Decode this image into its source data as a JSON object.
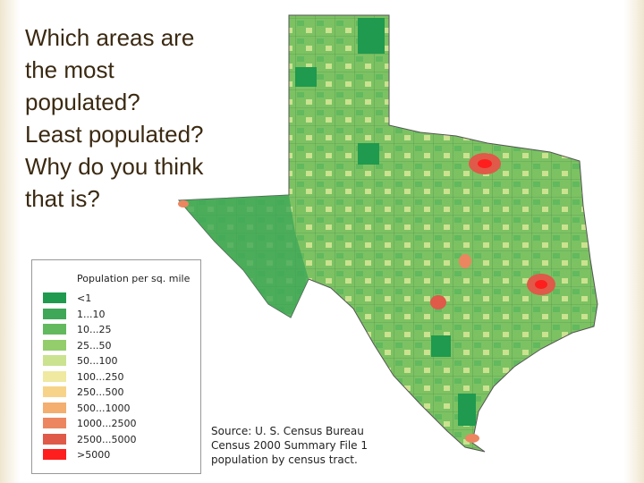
{
  "question": {
    "lines": [
      "Which areas are",
      "the most",
      "populated?",
      "Least populated?",
      "Why do you think",
      "that is?"
    ]
  },
  "legend": {
    "title": "Population per sq. mile",
    "items": [
      {
        "label": "<1",
        "color": "#1f9a4f"
      },
      {
        "label": "1...10",
        "color": "#3ea858"
      },
      {
        "label": "10...25",
        "color": "#62b95e"
      },
      {
        "label": "25...50",
        "color": "#93cd6c"
      },
      {
        "label": "50...100",
        "color": "#cbe290"
      },
      {
        "label": "100...250",
        "color": "#efe9a2"
      },
      {
        "label": "250...500",
        "color": "#f7d38a"
      },
      {
        "label": "500...1000",
        "color": "#f3ae70"
      },
      {
        "label": "1000...2500",
        "color": "#eb8660"
      },
      {
        "label": "2500...5000",
        "color": "#df5a48"
      },
      {
        "label": ">5000",
        "color": "#ff1e1e"
      }
    ]
  },
  "source": {
    "lines": [
      "Source: U. S. Census Bureau",
      "Census 2000 Summary File 1",
      "population by census tract."
    ]
  }
}
